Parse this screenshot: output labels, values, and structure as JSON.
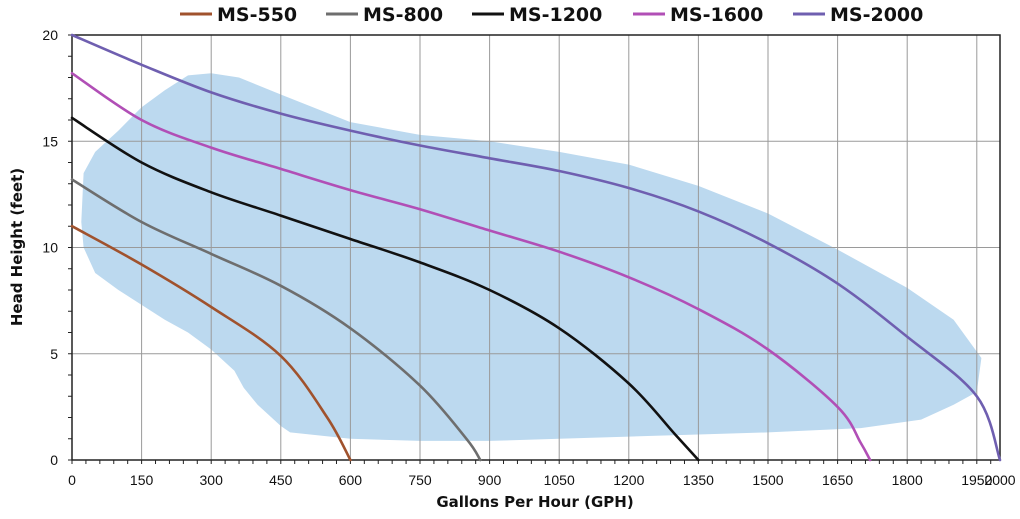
{
  "chart_data": {
    "type": "line",
    "title": "",
    "xlabel": "Gallons Per Hour (GPH)",
    "ylabel": "Head Height (feet)",
    "xlim": [
      0,
      2000
    ],
    "ylim": [
      0,
      20
    ],
    "x_ticks": [
      0,
      150,
      300,
      450,
      600,
      750,
      900,
      1050,
      1200,
      1350,
      1500,
      1650,
      1800,
      1950,
      2000
    ],
    "y_ticks": [
      0,
      5,
      10,
      15,
      20
    ],
    "grid": true,
    "legend_position": "top",
    "shaded_region_color": "#bcd9ef",
    "series": [
      {
        "name": "MS-550",
        "color": "#a0522d",
        "x": [
          0,
          150,
          300,
          450,
          550,
          600
        ],
        "y": [
          11,
          9.2,
          7.2,
          4.9,
          2.0,
          0
        ]
      },
      {
        "name": "MS-800",
        "color": "#6e6e6e",
        "x": [
          0,
          150,
          300,
          450,
          600,
          750,
          850,
          880
        ],
        "y": [
          13.2,
          11.2,
          9.7,
          8.2,
          6.2,
          3.5,
          1.0,
          0
        ]
      },
      {
        "name": "MS-1200",
        "color": "#111111",
        "x": [
          0,
          150,
          300,
          450,
          600,
          750,
          900,
          1050,
          1200,
          1300,
          1350
        ],
        "y": [
          16.1,
          14.0,
          12.6,
          11.5,
          10.4,
          9.3,
          8.0,
          6.2,
          3.6,
          1.2,
          0
        ]
      },
      {
        "name": "MS-1600",
        "color": "#b14fb6",
        "x": [
          0,
          150,
          300,
          450,
          600,
          750,
          900,
          1050,
          1200,
          1350,
          1500,
          1650,
          1700,
          1720
        ],
        "y": [
          18.2,
          16.0,
          14.7,
          13.7,
          12.7,
          11.8,
          10.8,
          9.8,
          8.6,
          7.1,
          5.2,
          2.5,
          0.8,
          0
        ]
      },
      {
        "name": "MS-2000",
        "color": "#6f5fb0",
        "x": [
          0,
          150,
          300,
          450,
          600,
          750,
          900,
          1050,
          1200,
          1350,
          1500,
          1650,
          1800,
          1950,
          2000
        ],
        "y": [
          20,
          18.6,
          17.3,
          16.3,
          15.5,
          14.8,
          14.2,
          13.6,
          12.8,
          11.7,
          10.2,
          8.3,
          5.8,
          3.0,
          0
        ]
      }
    ]
  }
}
